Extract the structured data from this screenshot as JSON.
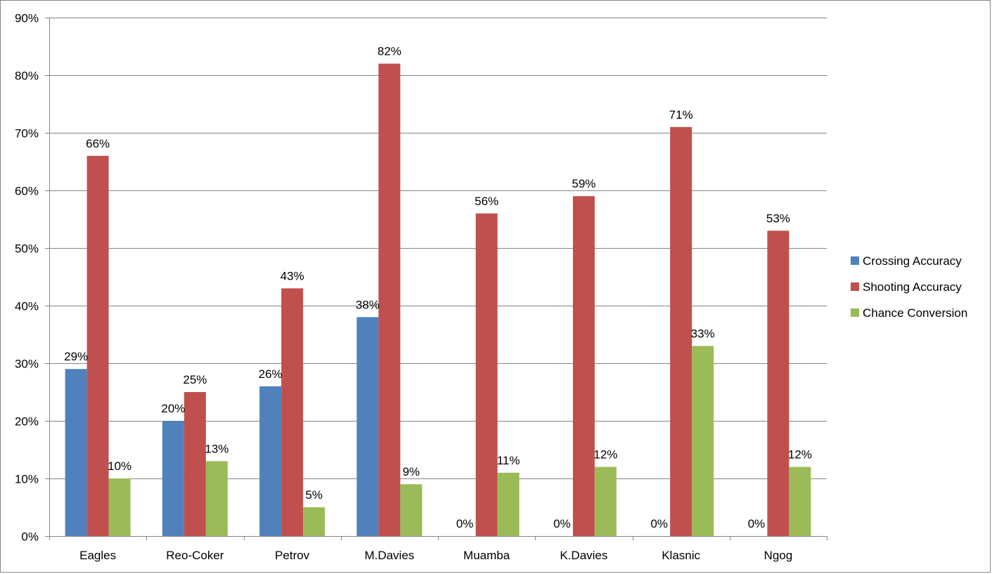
{
  "chart_data": {
    "type": "bar",
    "title": "",
    "xlabel": "",
    "ylabel": "",
    "categories": [
      "Eagles",
      "Reo-Coker",
      "Petrov",
      "M.Davies",
      "Muamba",
      "K.Davies",
      "Klasnic",
      "Ngog"
    ],
    "series": [
      {
        "name": "Crossing Accuracy",
        "color": "#4F81BD",
        "values": [
          29,
          20,
          26,
          38,
          0,
          0,
          0,
          0
        ],
        "labels": [
          "29%",
          "20%",
          "26%",
          "38%",
          "0%",
          "0%",
          "0%",
          "0%"
        ]
      },
      {
        "name": "Shooting Accuracy",
        "color": "#C0504D",
        "values": [
          66,
          25,
          43,
          82,
          56,
          59,
          71,
          53
        ],
        "labels": [
          "66%",
          "25%",
          "43%",
          "82%",
          "56%",
          "59%",
          "71%",
          "53%"
        ]
      },
      {
        "name": "Chance Conversion",
        "color": "#9BBB59",
        "values": [
          10,
          13,
          5,
          9,
          11,
          12,
          33,
          12
        ],
        "labels": [
          "10%",
          "13%",
          "5%",
          "9%",
          "11%",
          "12%",
          "33%",
          "12%"
        ]
      }
    ],
    "ylim": [
      0,
      90
    ],
    "yticks": [
      0,
      10,
      20,
      30,
      40,
      50,
      60,
      70,
      80,
      90
    ],
    "ytick_labels": [
      "0%",
      "10%",
      "20%",
      "30%",
      "40%",
      "50%",
      "60%",
      "70%",
      "80%",
      "90%"
    ],
    "grid": true,
    "legend_position": "right",
    "gridline_color": "#868686"
  }
}
